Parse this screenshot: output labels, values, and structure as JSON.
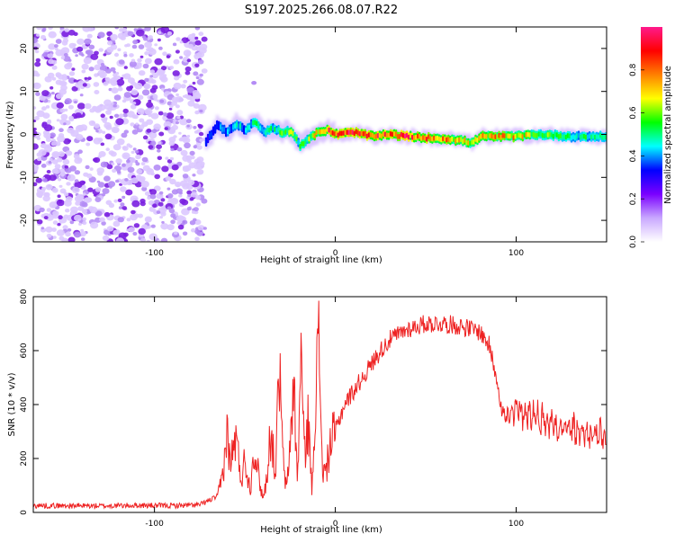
{
  "title": "S197.2025.266.08.07.R22",
  "chart_data": [
    {
      "type": "heatmap",
      "name": "spectrogram",
      "xlabel": "Height of straight line (km)",
      "ylabel": "Frequency (Hz)",
      "xlim": [
        -167,
        150
      ],
      "ylim": [
        -25,
        25
      ],
      "xticks": [
        -100,
        0,
        100
      ],
      "xtick_labels": [
        "-100",
        "0",
        "100"
      ],
      "yticks": [
        -20,
        -10,
        0,
        10,
        20
      ],
      "ytick_labels": [
        "-20",
        "-10",
        "0",
        "10",
        "20"
      ],
      "noise_region_x": [
        -167,
        -72
      ],
      "ridge": {
        "x": [
          -72,
          -66,
          -60,
          -55,
          -50,
          -45,
          -40,
          -35,
          -30,
          -25,
          -20,
          -15,
          -10,
          -5,
          0,
          10,
          20,
          30,
          40,
          50,
          60,
          70,
          75,
          80,
          90,
          100,
          110,
          120,
          130,
          140,
          150
        ],
        "freq": [
          -1.5,
          2.0,
          0.5,
          2.5,
          1.0,
          3.0,
          0.5,
          1.5,
          0.5,
          0.8,
          -2.5,
          -1.0,
          0.5,
          1.0,
          0.0,
          0.5,
          -0.5,
          0.0,
          -0.5,
          -0.8,
          -1.0,
          -1.5,
          -2.0,
          -0.5,
          -0.5,
          -0.5,
          0.0,
          -0.2,
          -0.5,
          -0.5,
          -0.5
        ],
        "amplitude": [
          0.3,
          0.35,
          0.4,
          0.45,
          0.4,
          0.5,
          0.45,
          0.5,
          0.55,
          0.6,
          0.5,
          0.6,
          0.75,
          0.85,
          0.9,
          0.92,
          0.9,
          0.85,
          0.88,
          0.8,
          0.75,
          0.7,
          0.65,
          0.7,
          0.75,
          0.72,
          0.6,
          0.55,
          0.5,
          0.5,
          0.5
        ]
      },
      "colorbar": {
        "label": "Normalized spectral amplitude",
        "range": [
          0,
          1
        ],
        "ticks": [
          0.0,
          0.2,
          0.4,
          0.6,
          0.8
        ],
        "tick_labels": [
          "0.0",
          "0.2",
          "0.4",
          "0.6",
          "0.8"
        ],
        "colors": [
          "#ffffff",
          "#c9a8ff",
          "#7a00ff",
          "#0000ff",
          "#00ffff",
          "#00ff00",
          "#ffff00",
          "#ff8000",
          "#ff0000",
          "#ff1a8c"
        ]
      }
    },
    {
      "type": "line",
      "name": "snr",
      "xlabel": "Height of straight line (km)",
      "ylabel": "SNR (10 * v/v)",
      "xlim": [
        -167,
        150
      ],
      "ylim": [
        0,
        800
      ],
      "xticks": [
        -100,
        0,
        100
      ],
      "xtick_labels": [
        "-100",
        "0",
        "100"
      ],
      "yticks": [
        0,
        200,
        400,
        600,
        800
      ],
      "ytick_labels": [
        "0",
        "200",
        "400",
        "600",
        "800"
      ],
      "color": "#ee2222",
      "series": [
        {
          "name": "SNR",
          "x": [
            -167,
            -150,
            -130,
            -110,
            -90,
            -75,
            -65,
            -62,
            -60,
            -58,
            -55,
            -52,
            -50,
            -47,
            -45,
            -42,
            -40,
            -38,
            -36,
            -33,
            -31,
            -29,
            -27,
            -25,
            -23,
            -21,
            -19,
            -17,
            -15,
            -13,
            -11,
            -9,
            -7,
            -5,
            -3,
            0,
            5,
            10,
            15,
            20,
            25,
            30,
            40,
            50,
            60,
            70,
            75,
            80,
            85,
            90,
            92,
            95,
            100,
            110,
            120,
            130,
            140,
            150
          ],
          "y": [
            25,
            25,
            24,
            26,
            25,
            28,
            60,
            150,
            300,
            180,
            280,
            120,
            200,
            80,
            250,
            120,
            50,
            120,
            300,
            150,
            550,
            200,
            80,
            250,
            500,
            100,
            600,
            200,
            350,
            80,
            450,
            620,
            150,
            150,
            250,
            300,
            400,
            450,
            500,
            550,
            600,
            640,
            680,
            700,
            700,
            690,
            680,
            670,
            620,
            480,
            380,
            340,
            380,
            360,
            330,
            310,
            290,
            280
          ]
        }
      ]
    }
  ]
}
